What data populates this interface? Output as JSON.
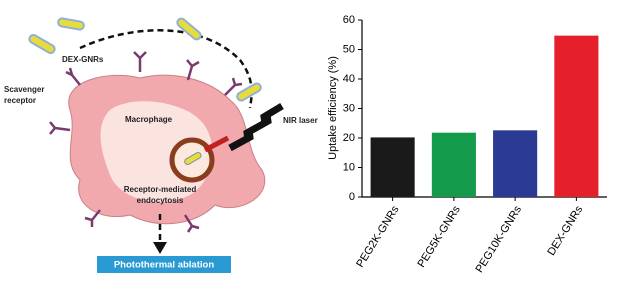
{
  "chart_data": {
    "type": "bar",
    "y_label": "Uptake efficiency (%)",
    "categories": [
      "PEG2K-GNRs",
      "PEG5K-GNRs",
      "PEG10K-GNRs",
      "DEX-GNRs"
    ],
    "values": [
      20.2,
      21.8,
      22.6,
      54.7
    ],
    "colors": [
      "#1a1a1a",
      "#139a4a",
      "#2b3a92",
      "#e5202a"
    ],
    "ylim": [
      0,
      60
    ],
    "yticks": [
      0,
      10,
      20,
      30,
      40,
      50,
      60
    ]
  },
  "diagram": {
    "particle_label": "DEX-GNRs",
    "receptor_label": [
      "Scavenger",
      "receptor"
    ],
    "cell_label": "Macrophage",
    "laser_label": "NIR laser",
    "endocytosis_label": [
      "Receptor-mediated",
      "endocytosis"
    ],
    "outcome_label": "Photothermal ablation"
  }
}
